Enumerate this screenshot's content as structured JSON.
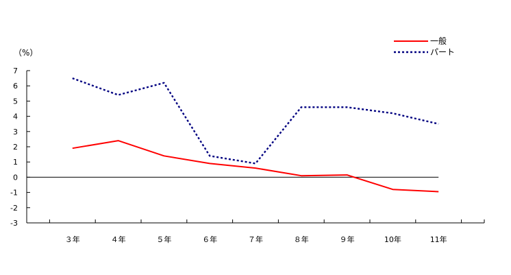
{
  "chart_data": {
    "type": "line",
    "categories": [
      "３年",
      "４年",
      "５年",
      "６年",
      "７年",
      "８年",
      "９年",
      "10年",
      "11年"
    ],
    "series": [
      {
        "name": "一般",
        "values": [
          1.9,
          2.4,
          1.4,
          0.9,
          0.6,
          0.1,
          0.15,
          -0.8,
          -0.95
        ],
        "color": "#ff0000",
        "style": "solid"
      },
      {
        "name": "パート",
        "values": [
          6.5,
          5.4,
          6.2,
          1.4,
          0.9,
          4.6,
          4.6,
          4.2,
          3.5
        ],
        "color": "#000080",
        "style": "dotted"
      }
    ],
    "ylim": [
      -3,
      7
    ],
    "yticks": [
      "7",
      "6",
      "5",
      "4",
      "3",
      "2",
      "1",
      "0",
      "-1",
      "-2",
      "-3"
    ],
    "ylabel": "（%）",
    "legend_position": "top-right",
    "grid": false
  }
}
